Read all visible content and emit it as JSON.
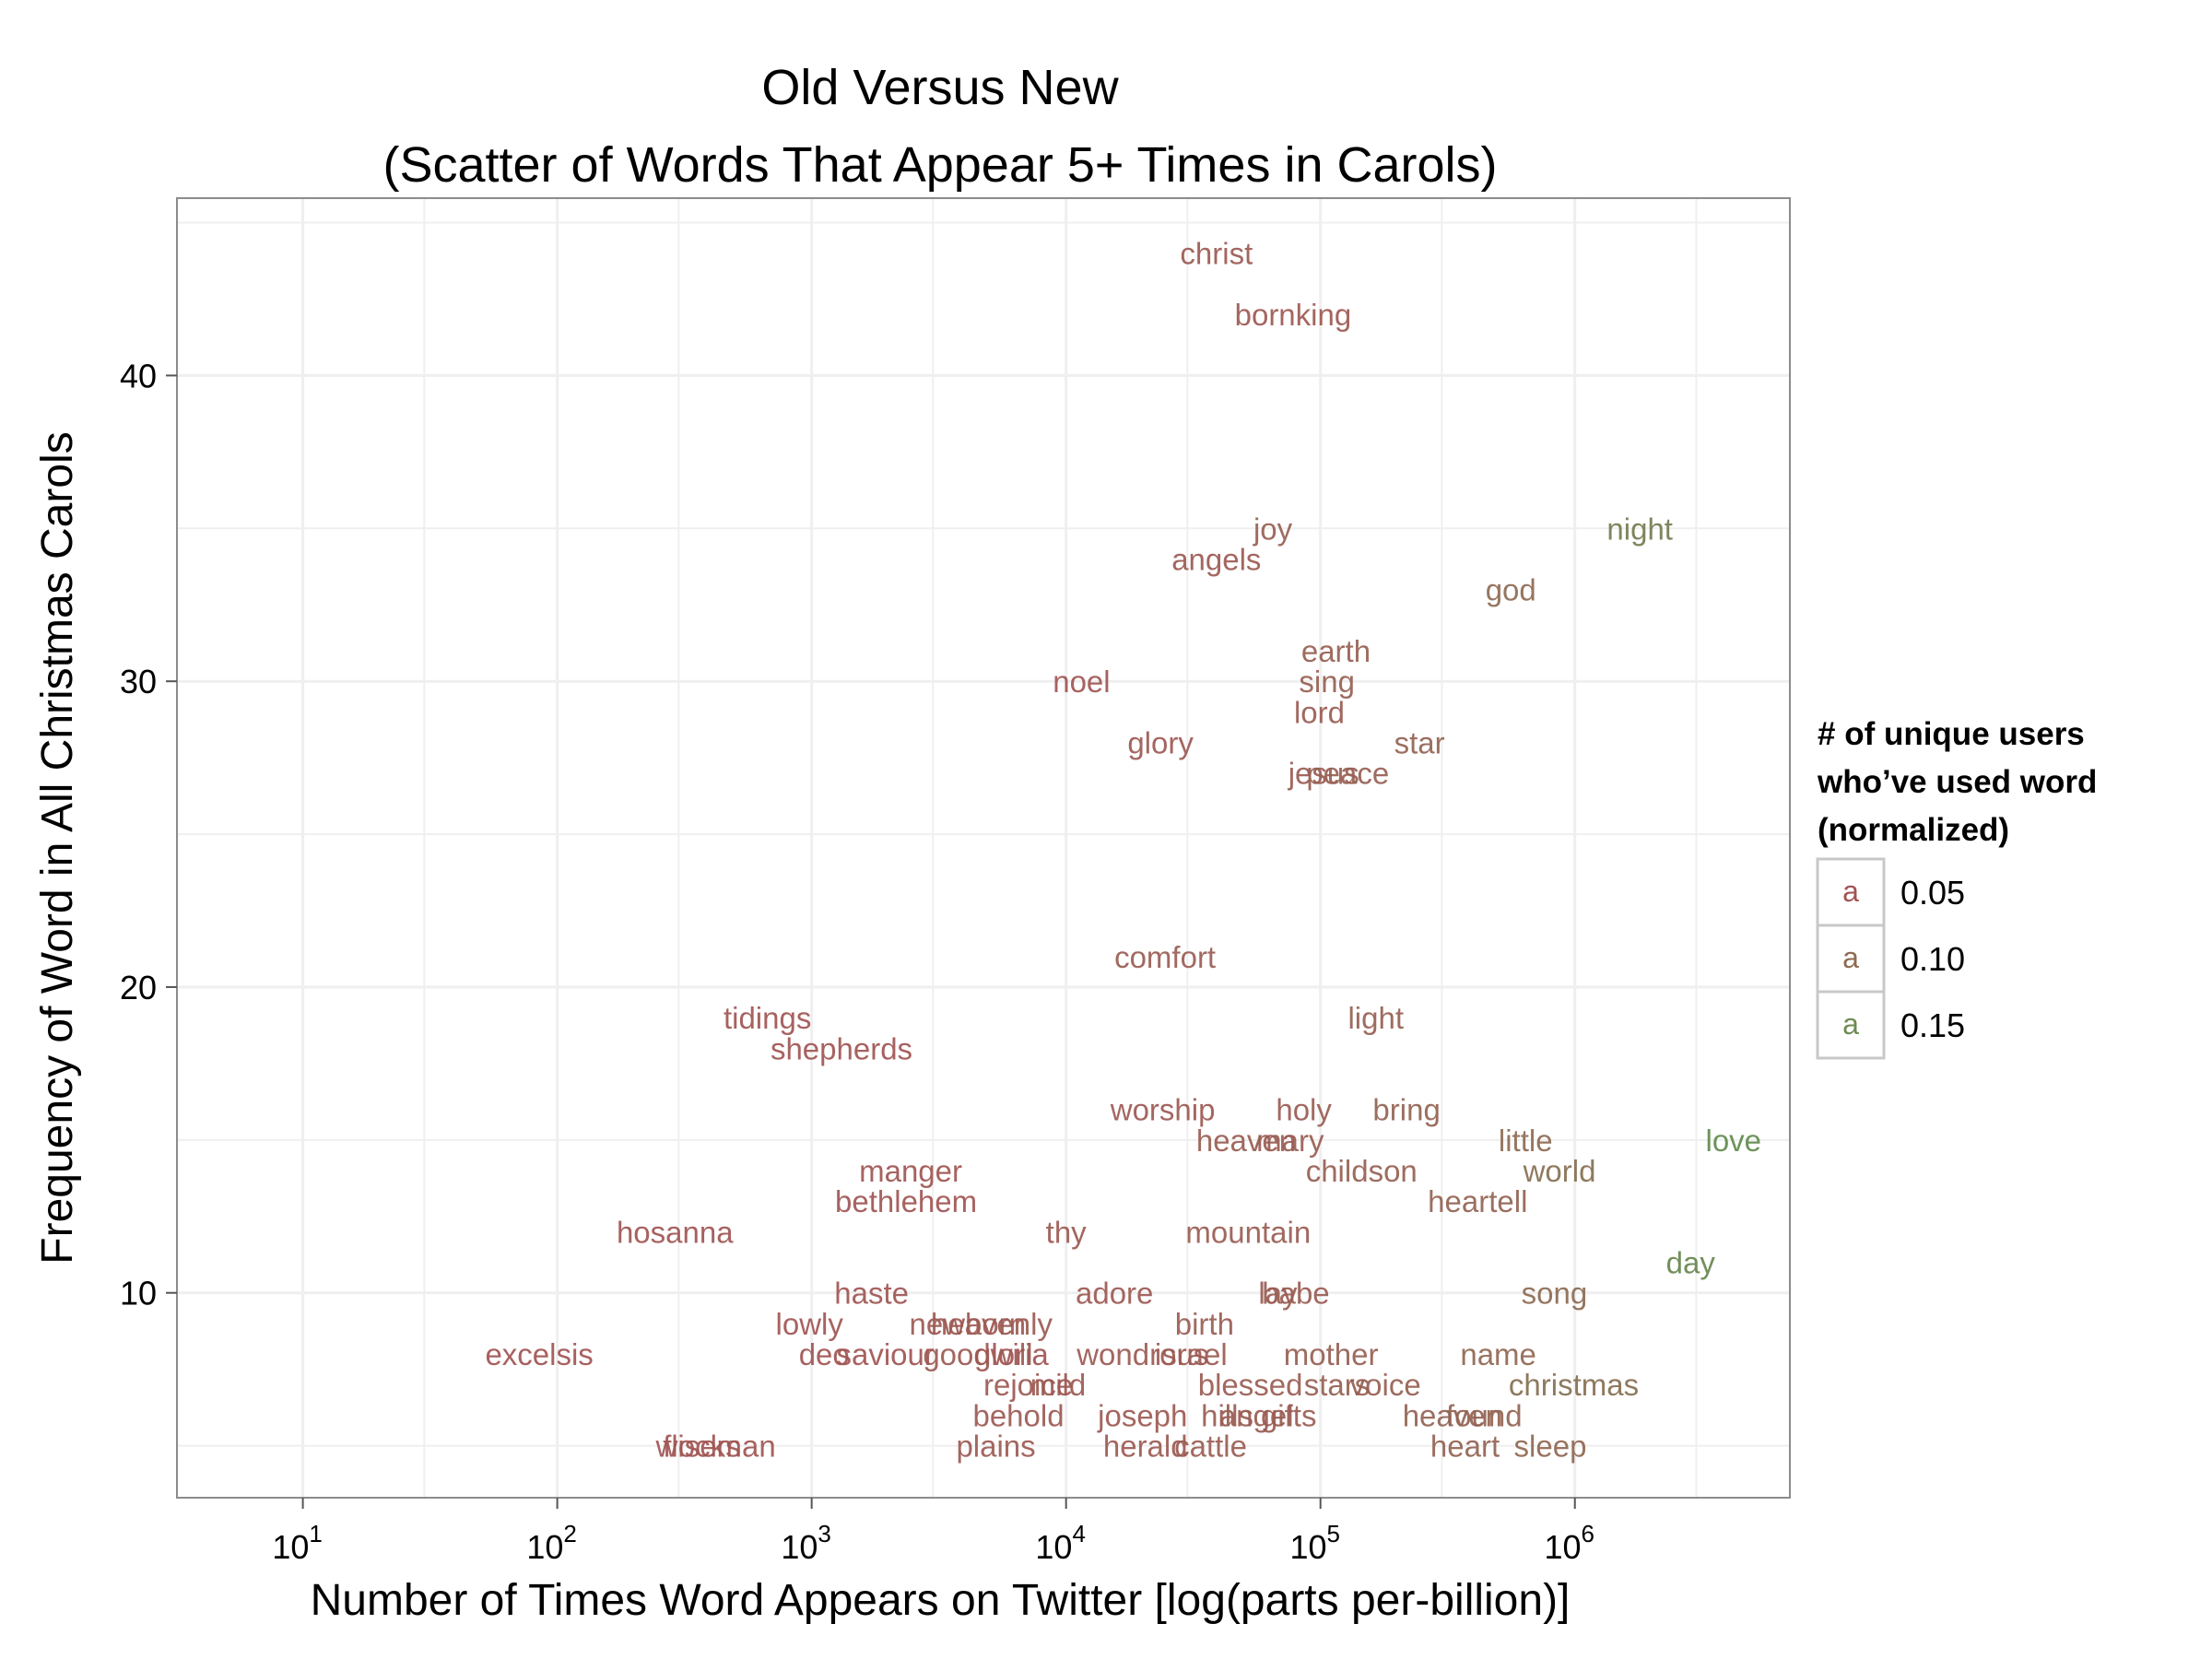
{
  "chart_data": {
    "type": "scatter",
    "title": [
      "Old Versus New",
      "(Scatter of Words That Appear 5+ Times in Carols)"
    ],
    "xlabel": "Number of Times Word Appears on Twitter [log(parts per-billion)]",
    "ylabel": "Frequency of Word in All Christmas Carols",
    "x_scale": "log10",
    "xlim": [
      3.2,
      7000000
    ],
    "ylim": [
      3.3,
      45.8
    ],
    "x_ticks": [
      {
        "value": 10,
        "exp": "1"
      },
      {
        "value": 100,
        "exp": "2"
      },
      {
        "value": 1000,
        "exp": "3"
      },
      {
        "value": 10000,
        "exp": "4"
      },
      {
        "value": 100000,
        "exp": "5"
      },
      {
        "value": 1000000,
        "exp": "6"
      }
    ],
    "y_ticks": [
      10,
      20,
      30,
      40
    ],
    "grid": true,
    "legend": {
      "position": "right",
      "title": [
        "# of unique users",
        "who’ve used word",
        "(normalized)"
      ],
      "key_glyph": "a",
      "entries": [
        {
          "label": "0.05",
          "color": "#a25252"
        },
        {
          "label": "0.10",
          "color": "#8d6a52"
        },
        {
          "label": "0.15",
          "color": "#6e8a52"
        }
      ]
    },
    "colors": {
      "low": "#a25252",
      "mid": "#8d6a52",
      "high": "#5f8a4d",
      "grid": "#efefef",
      "frame": "#8c8c8c"
    },
    "points": [
      {
        "word": "christ",
        "x": 39000,
        "y": 44,
        "u": 0.03
      },
      {
        "word": "bornking",
        "x": 78000,
        "y": 42,
        "u": 0.03
      },
      {
        "word": "joy",
        "x": 65000,
        "y": 35,
        "u": 0.05
      },
      {
        "word": "night",
        "x": 1800000,
        "y": 35,
        "u": 0.12
      },
      {
        "word": "angels",
        "x": 39000,
        "y": 34,
        "u": 0.03
      },
      {
        "word": "god",
        "x": 560000,
        "y": 33,
        "u": 0.08
      },
      {
        "word": "earth",
        "x": 115000,
        "y": 31,
        "u": 0.05
      },
      {
        "word": "noel",
        "x": 11500,
        "y": 30,
        "u": 0.02
      },
      {
        "word": "sing",
        "x": 106000,
        "y": 30,
        "u": 0.05
      },
      {
        "word": "lord",
        "x": 99000,
        "y": 29,
        "u": 0.04
      },
      {
        "word": "star",
        "x": 245000,
        "y": 28,
        "u": 0.06
      },
      {
        "word": "glory",
        "x": 23500,
        "y": 28,
        "u": 0.03
      },
      {
        "word": "jesus",
        "x": 103000,
        "y": 27,
        "u": 0.04
      },
      {
        "word": "peace",
        "x": 128000,
        "y": 27,
        "u": 0.05
      },
      {
        "word": "comfort",
        "x": 24500,
        "y": 21,
        "u": 0.04
      },
      {
        "word": "tidings",
        "x": 670,
        "y": 19,
        "u": 0.02
      },
      {
        "word": "light",
        "x": 165000,
        "y": 19,
        "u": 0.05
      },
      {
        "word": "shepherds",
        "x": 1310,
        "y": 18,
        "u": 0.02
      },
      {
        "word": "worship",
        "x": 24000,
        "y": 16,
        "u": 0.03
      },
      {
        "word": "holy",
        "x": 86000,
        "y": 16,
        "u": 0.04
      },
      {
        "word": "bring",
        "x": 218000,
        "y": 16,
        "u": 0.06
      },
      {
        "word": "heaven",
        "x": 51000,
        "y": 15,
        "u": 0.04
      },
      {
        "word": "mary",
        "x": 76000,
        "y": 15,
        "u": 0.04
      },
      {
        "word": "little",
        "x": 640000,
        "y": 15,
        "u": 0.08
      },
      {
        "word": "love",
        "x": 4200000,
        "y": 15,
        "u": 0.15
      },
      {
        "word": "manger",
        "x": 2450,
        "y": 14,
        "u": 0.02
      },
      {
        "word": "childson",
        "x": 145000,
        "y": 14,
        "u": 0.05
      },
      {
        "word": "world",
        "x": 870000,
        "y": 14,
        "u": 0.09
      },
      {
        "word": "bethlehem",
        "x": 2350,
        "y": 13,
        "u": 0.02
      },
      {
        "word": "heartell",
        "x": 415000,
        "y": 13,
        "u": 0.06
      },
      {
        "word": "hosanna",
        "x": 290,
        "y": 12,
        "u": 0.02
      },
      {
        "word": "thy",
        "x": 10000,
        "y": 12,
        "u": 0.03
      },
      {
        "word": "mountain",
        "x": 52000,
        "y": 12,
        "u": 0.04
      },
      {
        "word": "day",
        "x": 2850000,
        "y": 11,
        "u": 0.14
      },
      {
        "word": "haste",
        "x": 1720,
        "y": 10,
        "u": 0.02
      },
      {
        "word": "adore",
        "x": 15500,
        "y": 10,
        "u": 0.03
      },
      {
        "word": "lay",
        "x": 68000,
        "y": 10,
        "u": 0.04
      },
      {
        "word": "babe",
        "x": 80000,
        "y": 10,
        "u": 0.04
      },
      {
        "word": "song",
        "x": 830000,
        "y": 10,
        "u": 0.08
      },
      {
        "word": "lowly",
        "x": 980,
        "y": 9,
        "u": 0.02
      },
      {
        "word": "newborn",
        "x": 4100,
        "y": 9,
        "u": 0.03
      },
      {
        "word": "heavenly",
        "x": 5100,
        "y": 9,
        "u": 0.03
      },
      {
        "word": "birth",
        "x": 35000,
        "y": 9,
        "u": 0.04
      },
      {
        "word": "gloria",
        "x": 6100,
        "y": 8,
        "u": 0.01
      },
      {
        "word": "excelsis",
        "x": 85,
        "y": 8,
        "u": 0.01
      },
      {
        "word": "deo",
        "x": 1120,
        "y": 8,
        "u": 0.02
      },
      {
        "word": "saviour",
        "x": 1950,
        "y": 8,
        "u": 0.02
      },
      {
        "word": "goodwill",
        "x": 4500,
        "y": 8,
        "u": 0.03
      },
      {
        "word": "wondrous",
        "x": 20000,
        "y": 8,
        "u": 0.03
      },
      {
        "word": "israel",
        "x": 31000,
        "y": 8,
        "u": 0.03
      },
      {
        "word": "mother",
        "x": 110000,
        "y": 8,
        "u": 0.05
      },
      {
        "word": "name",
        "x": 500000,
        "y": 8,
        "u": 0.07
      },
      {
        "word": "rejoice",
        "x": 7100,
        "y": 7,
        "u": 0.03
      },
      {
        "word": "mild",
        "x": 9300,
        "y": 7,
        "u": 0.03
      },
      {
        "word": "blessed",
        "x": 53000,
        "y": 7,
        "u": 0.04
      },
      {
        "word": "stars",
        "x": 116000,
        "y": 7,
        "u": 0.05
      },
      {
        "word": "voice",
        "x": 180000,
        "y": 7,
        "u": 0.05
      },
      {
        "word": "christmas",
        "x": 990000,
        "y": 7,
        "u": 0.09
      },
      {
        "word": "behold",
        "x": 6500,
        "y": 6,
        "u": 0.03
      },
      {
        "word": "joseph",
        "x": 20000,
        "y": 6,
        "u": 0.03
      },
      {
        "word": "hills",
        "x": 43000,
        "y": 6,
        "u": 0.04
      },
      {
        "word": "angel",
        "x": 56000,
        "y": 6,
        "u": 0.04
      },
      {
        "word": "gifts",
        "x": 75000,
        "y": 6,
        "u": 0.04
      },
      {
        "word": "heaven",
        "x": 330000,
        "y": 6,
        "u": 0.06
      },
      {
        "word": "found",
        "x": 440000,
        "y": 6,
        "u": 0.06
      },
      {
        "word": "flocks",
        "x": 370,
        "y": 5,
        "u": 0.02
      },
      {
        "word": "wiseman",
        "x": 420,
        "y": 5,
        "u": 0.02
      },
      {
        "word": "plains",
        "x": 5300,
        "y": 5,
        "u": 0.03
      },
      {
        "word": "herald",
        "x": 20500,
        "y": 5,
        "u": 0.03
      },
      {
        "word": "cattle",
        "x": 37000,
        "y": 5,
        "u": 0.04
      },
      {
        "word": "heart",
        "x": 370000,
        "y": 5,
        "u": 0.06
      },
      {
        "word": "sleep",
        "x": 800000,
        "y": 5,
        "u": 0.07
      }
    ]
  }
}
